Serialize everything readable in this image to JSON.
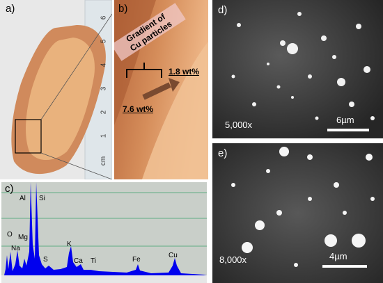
{
  "panels": {
    "a": {
      "label": "a)",
      "ruler_numbers": [
        "6",
        "5",
        "4",
        "3",
        "2",
        "1"
      ],
      "ruler_unit": "cm"
    },
    "b": {
      "label": "b)",
      "annotation": "Gradient of Cu particles",
      "annotation_line1": "Gradient of",
      "annotation_line2": "Cu particles",
      "low_value": "1.8 wt%",
      "high_value": "7.6 wt%"
    },
    "c": {
      "label": "c)",
      "elements": [
        "O",
        "Na",
        "Mg",
        "Al",
        "Si",
        "S",
        "K",
        "Ca",
        "Ti",
        "Fe",
        "Cu"
      ]
    },
    "d": {
      "label": "d)",
      "magnification": "5,000x",
      "scale_bar": "6µm"
    },
    "e": {
      "label": "e)",
      "magnification": "8,000x",
      "scale_bar": "4µm"
    }
  },
  "colors": {
    "spectrum": "#0000ee",
    "spectrum_bg": "#c9cfc9",
    "clay": "#d9875a",
    "sem_bg": "#3a3a3a"
  }
}
